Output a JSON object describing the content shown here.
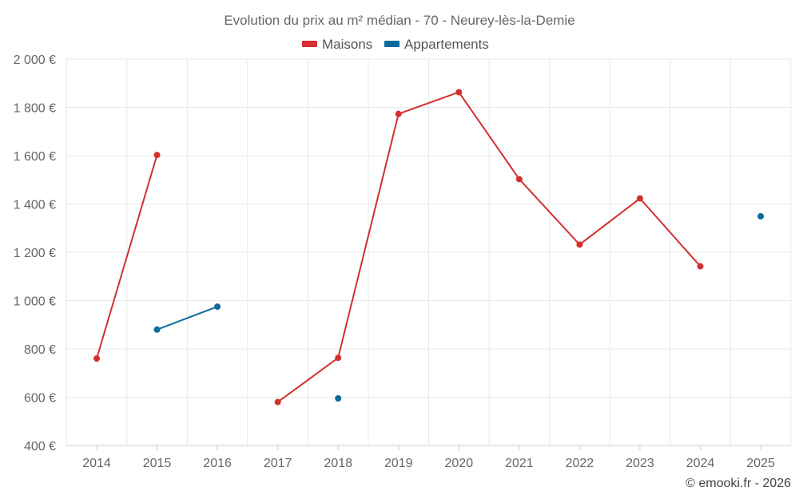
{
  "chart_data": {
    "type": "line",
    "title": "Evolution du prix au m² médian - 70 - Neurey-lès-la-Demie",
    "categories": [
      "2014",
      "2015",
      "2016",
      "2017",
      "2018",
      "2019",
      "2020",
      "2021",
      "2022",
      "2023",
      "2024",
      "2025"
    ],
    "series": [
      {
        "name": "Maisons",
        "color": "#d32f2f",
        "values": [
          760,
          1603,
          null,
          580,
          763,
          1773,
          1863,
          1503,
          1232,
          1423,
          1142,
          null
        ]
      },
      {
        "name": "Appartements",
        "color": "#0d6a9e",
        "values": [
          null,
          880,
          975,
          null,
          595,
          null,
          null,
          null,
          null,
          null,
          null,
          1349
        ]
      }
    ],
    "y_ticks": [
      {
        "value": 400,
        "label": "400 €"
      },
      {
        "value": 600,
        "label": "600 €"
      },
      {
        "value": 800,
        "label": "800 €"
      },
      {
        "value": 1000,
        "label": "1 000 €"
      },
      {
        "value": 1200,
        "label": "1 200 €"
      },
      {
        "value": 1400,
        "label": "1 400 €"
      },
      {
        "value": 1600,
        "label": "1 600 €"
      },
      {
        "value": 1800,
        "label": "1 800 €"
      },
      {
        "value": 2000,
        "label": "2 000 €"
      }
    ],
    "ylim": [
      400,
      2000
    ],
    "xlabel": "",
    "ylabel": "",
    "legend_position": "top-center",
    "grid": true,
    "credit": "© emooki.fr - 2026"
  }
}
